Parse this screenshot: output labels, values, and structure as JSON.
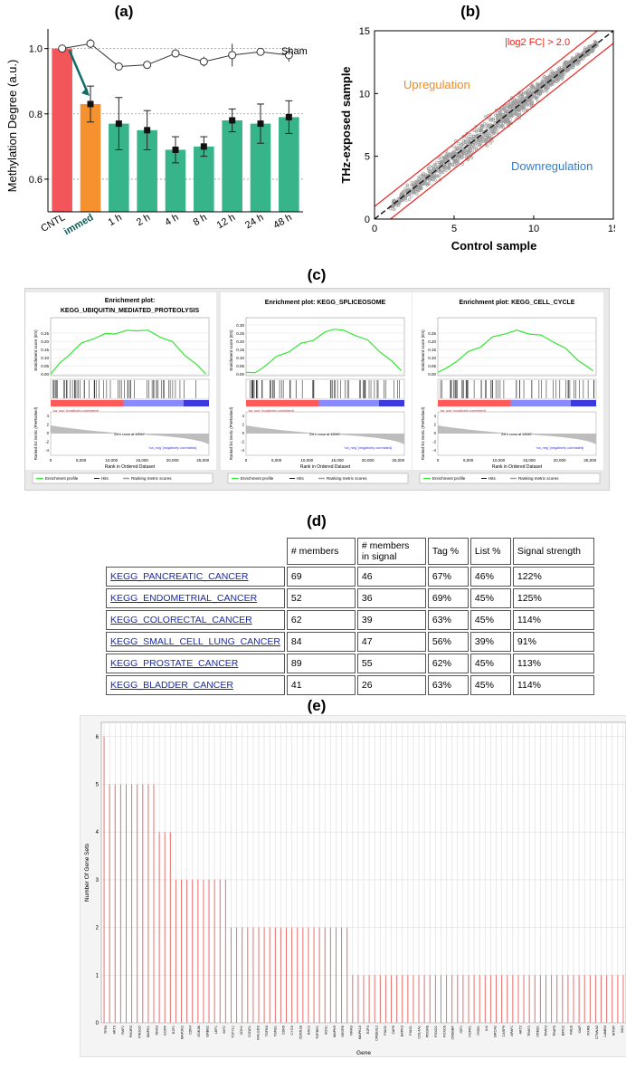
{
  "labels": {
    "a": "(a)",
    "b": "(b)",
    "c": "(c)",
    "d": "(d)",
    "e": "(e)"
  },
  "chart_data": [
    {
      "id": "a",
      "type": "bar",
      "ylabel": "Methylation Degree (a.u.)",
      "ylim": [
        0.5,
        1.06
      ],
      "yticks": [
        "0.6",
        "0.8",
        "1.0"
      ],
      "categories": [
        "CNTL",
        "immed",
        "1 h",
        "2 h",
        "4 h",
        "8 h",
        "12 h",
        "24 h",
        "48 h"
      ],
      "values": [
        1.0,
        0.83,
        0.77,
        0.75,
        0.69,
        0.7,
        0.78,
        0.77,
        0.79
      ],
      "errors": [
        0.0,
        0.055,
        0.08,
        0.06,
        0.04,
        0.03,
        0.035,
        0.06,
        0.05
      ],
      "bar_colors": [
        "#f2555a",
        "#f5922f",
        "#37b48a",
        "#37b48a",
        "#37b48a",
        "#37b48a",
        "#37b48a",
        "#37b48a",
        "#37b48a"
      ],
      "sham_series": {
        "name": "Sham",
        "values": [
          1.0,
          1.015,
          0.945,
          0.95,
          0.985,
          0.96,
          0.98,
          0.99,
          0.98
        ],
        "errors": [
          0.01,
          0.015,
          0.0,
          0.005,
          0.005,
          0.015,
          0.035,
          0.0,
          0.02
        ]
      },
      "grid": "dashed at 0.6, 0.8, 1.0"
    },
    {
      "id": "b",
      "type": "scatter",
      "xlabel": "Control sample",
      "ylabel": "THz-exposed  sample",
      "xlim": [
        0,
        15
      ],
      "ylim": [
        0,
        15
      ],
      "xticks": [
        "0",
        "5",
        "10",
        "15"
      ],
      "yticks": [
        "0",
        "5",
        "10",
        "15"
      ],
      "annotations": {
        "threshold": "|log2 FC| > 2.0",
        "up": "Upregulation",
        "down": "Downregulation"
      },
      "threshold_offset": 1.0,
      "colors": {
        "threshold": "#e8251f",
        "up": "#f28a1e",
        "down": "#2d7fd6",
        "points": "#9a9a9a"
      }
    },
    {
      "id": "c",
      "type": "line",
      "panels": [
        {
          "title1": "Enrichment plot:",
          "title2": "KEGG_UBIQUITIN_MEDIATED_PROTEOLYSIS",
          "x": [
            0,
            1500,
            3000,
            5000,
            7000,
            9000,
            10500,
            12500,
            14000,
            16000,
            18000,
            20000,
            22000,
            24000,
            25500
          ],
          "y": [
            0.0,
            0.06,
            0.12,
            0.18,
            0.22,
            0.24,
            0.25,
            0.26,
            0.27,
            0.26,
            0.23,
            0.19,
            0.12,
            0.05,
            0.0
          ],
          "ylim": [
            -0.01,
            0.3
          ],
          "yticks": [
            "0.00",
            "0.05",
            "0.10",
            "0.15",
            "0.20",
            "0.25"
          ]
        },
        {
          "title1": "",
          "title2": "Enrichment plot: KEGG_SPLICEOSOME",
          "x": [
            0,
            1500,
            3000,
            5000,
            7000,
            9000,
            11000,
            13000,
            14500,
            16000,
            18000,
            20000,
            22000,
            24000,
            25500
          ],
          "y": [
            0.01,
            0.0,
            0.05,
            0.1,
            0.14,
            0.18,
            0.21,
            0.25,
            0.28,
            0.26,
            0.24,
            0.2,
            0.14,
            0.07,
            0.02
          ],
          "ylim": [
            -0.01,
            0.3
          ],
          "yticks": [
            "0.00",
            "0.05",
            "0.10",
            "0.15",
            "0.20",
            "0.25",
            "0.30"
          ]
        },
        {
          "title1": "",
          "title2": "Enrichment plot: KEGG_CELL_CYCLE",
          "x": [
            0,
            1500,
            3000,
            5000,
            7000,
            9000,
            11000,
            13000,
            15000,
            17000,
            19000,
            21000,
            23000,
            25500
          ],
          "y": [
            0.01,
            0.03,
            0.08,
            0.13,
            0.17,
            0.22,
            0.25,
            0.26,
            0.25,
            0.23,
            0.2,
            0.15,
            0.09,
            0.02
          ],
          "ylim": [
            -0.01,
            0.3
          ],
          "yticks": [
            "0.00",
            "0.05",
            "0.10",
            "0.15",
            "0.20",
            "0.25"
          ]
        }
      ],
      "xlabel": "Rank in Ordered Dataset",
      "ylabel_top": "Enrichment score (ES)",
      "ylabel_bottom": "Ranked list metric (PreRanked)",
      "xticks": [
        "0",
        "5,000",
        "10,000",
        "15,000",
        "20,000",
        "25,000"
      ],
      "bottom_yticks": [
        "4",
        "2",
        "0",
        "-2",
        "-4"
      ],
      "pos_label": "'na_pos' (positively correlated)",
      "neg_label": "'na_neg' (negatively correlated)",
      "zero_cross": "Zero cross at 12047",
      "legend": [
        "Enrichment profile",
        "Hits",
        "Ranking metric scores"
      ],
      "line_color": "#33e633"
    },
    {
      "id": "d",
      "type": "table",
      "headers": [
        [
          "# members",
          ""
        ],
        [
          "# members",
          "in signal"
        ],
        [
          "Tag %",
          ""
        ],
        [
          "List %",
          ""
        ],
        [
          "Signal strength",
          ""
        ]
      ],
      "rows": [
        [
          "KEGG_PANCREATIC_CANCER",
          "69",
          "46",
          "67%",
          "46%",
          "122%"
        ],
        [
          "KEGG_ENDOMETRIAL_CANCER",
          "52",
          "36",
          "69%",
          "45%",
          "125%"
        ],
        [
          "KEGG_COLORECTAL_CANCER",
          "62",
          "39",
          "63%",
          "45%",
          "114%"
        ],
        [
          "KEGG_SMALL_CELL_LUNG_CANCER",
          "84",
          "47",
          "56%",
          "39%",
          "91%"
        ],
        [
          "KEGG_PROSTATE_CANCER",
          "89",
          "55",
          "62%",
          "45%",
          "113%"
        ],
        [
          "KEGG_BLADDER_CANCER",
          "41",
          "26",
          "63%",
          "45%",
          "114%"
        ]
      ]
    },
    {
      "id": "e",
      "type": "bar",
      "xlabel": "Gene",
      "ylabel": "Number Of Gene Sets",
      "ylim": [
        0,
        6.3
      ],
      "yticks": [
        "0",
        "1",
        "2",
        "3",
        "4",
        "5",
        "6"
      ],
      "bar_color": "#e8706d",
      "tick_genes": [
        "TP53",
        "AKT3",
        "RAF1",
        "PIK3R3",
        "PIK3CD",
        "MAPK1",
        "KRAS",
        "EGFR",
        "E2F1",
        "MAP2K2",
        "CDK4",
        "GSK3B",
        "ERBB2",
        "LEF1",
        "MYC",
        "TCF7L1",
        "CDH1",
        "CCND1",
        "RALGDS",
        "TGFB3",
        "TGFB1",
        "CDK6",
        "CYCS",
        "CDKN1B",
        "RAC2",
        "TGFBR1",
        "SOS1",
        "MAPK9",
        "VEGFB",
        "NRAS",
        "MAPK10",
        "E2F3",
        "CREB3L2",
        "PIAS2",
        "ZAP6",
        "BAPK3",
        "PIAS1",
        "COL4A1",
        "PDGFB",
        "FOXO1",
        "FOXO3",
        "CREBBP",
        "IGF1",
        "FGFR1",
        "ITGB1",
        "ILK",
        "BRCA2",
        "CASP9",
        "APAF1",
        "AKT2",
        "TRAF2",
        "CREB1",
        "TRAF3",
        "TRAF5",
        "BIRC2",
        "RALB",
        "XIAP",
        "RXRB",
        "CTNNA3",
        "LAMB3",
        "MTOR",
        "BAX"
      ],
      "counts_by_group": [
        {
          "count": 6,
          "n": 1
        },
        {
          "count": 5,
          "n": 9
        },
        {
          "count": 4,
          "n": 3
        },
        {
          "count": 3,
          "n": 10
        },
        {
          "count": 2,
          "n": 22
        },
        {
          "count": 1,
          "n": 50
        }
      ]
    }
  ]
}
